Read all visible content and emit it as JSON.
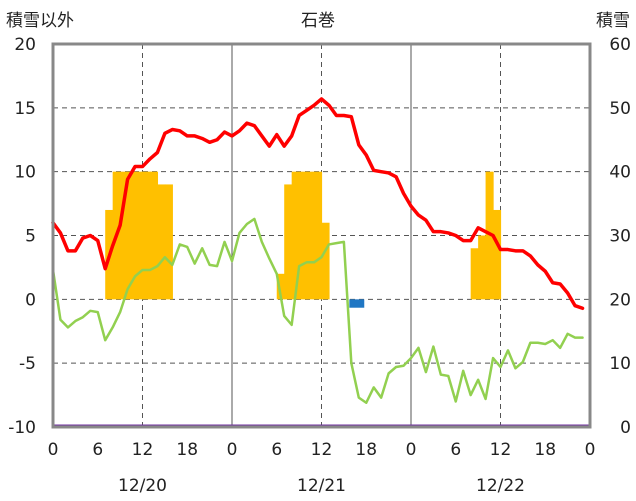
{
  "chart_data": {
    "type": "line",
    "title": "石巻",
    "ylabel_left": "積雪以外",
    "ylabel_right": "積雪",
    "y_left_range": [
      -10,
      20
    ],
    "y_left_ticks": [
      20,
      15,
      10,
      5,
      0,
      -5,
      -10
    ],
    "y_right_range": [
      0,
      60
    ],
    "y_right_ticks": [
      60,
      50,
      40,
      30,
      20,
      10,
      0
    ],
    "x_range_hours": [
      0,
      72
    ],
    "x_tick_labels": [
      "0",
      "6",
      "12",
      "18",
      "0",
      "6",
      "12",
      "18",
      "0",
      "6",
      "12",
      "18",
      "0"
    ],
    "date_labels": [
      "12/20",
      "12/21",
      "12/22"
    ],
    "grid": true,
    "colors": {
      "temperature": "#ff0000",
      "humidity_like": "#92d050",
      "snowfall_bars": "#ffc000",
      "negative_bar": "#1f77c4",
      "baseline": "#7030a0",
      "frame": "#888888"
    },
    "snowfall_bars": {
      "hours": [
        7,
        8,
        9,
        10,
        11,
        12,
        13,
        14,
        15,
        30,
        31,
        32,
        33,
        34,
        35,
        36,
        37,
        56,
        57,
        58,
        59
      ],
      "values": [
        7,
        10,
        10,
        10,
        10,
        10,
        10,
        9,
        9,
        2,
        9,
        10,
        10,
        10,
        10,
        6,
        0,
        4,
        5,
        10,
        7
      ]
    },
    "negative_bar": {
      "hour": 40,
      "value": -0.5
    },
    "series": [
      {
        "values": [
          6,
          5.2,
          3.8,
          3.8,
          4.8,
          5,
          4.6,
          2.4,
          4.2,
          5.8,
          9.4,
          10.4,
          10.4,
          11,
          11.5,
          13,
          13.3,
          13.2,
          12.8,
          12.8,
          12.6,
          12.3,
          12.5,
          13.1,
          12.8,
          13.2,
          13.8,
          13.6,
          12.8,
          12,
          12.9,
          12,
          12.8,
          14.4,
          14.8,
          15.2,
          15.7,
          15.2,
          14.4,
          14.4,
          14.3,
          12.1,
          11.3,
          10.1,
          10,
          9.9,
          9.6,
          8.3,
          7.3,
          6.6,
          6.2,
          5.3,
          5.3,
          5.2,
          5,
          4.6,
          4.6,
          5.6,
          5.3,
          5,
          3.9,
          3.9,
          3.8,
          3.8,
          3.4,
          2.7,
          2.2,
          1.3,
          1.2,
          0.5,
          -0.5,
          -0.7
        ]
      },
      {
        "values": [
          2.3,
          -1.6,
          -2.2,
          -1.7,
          -1.4,
          -0.9,
          -1,
          -3.2,
          -2.2,
          -1,
          0.8,
          1.8,
          2.3,
          2.3,
          2.6,
          3.3,
          2.7,
          4.3,
          4.1,
          2.8,
          4,
          2.7,
          2.6,
          4.5,
          3,
          5.2,
          5.9,
          6.3,
          4.5,
          3.2,
          2,
          -1.3,
          -2,
          2.6,
          2.9,
          2.9,
          3.3,
          4.3,
          4.4,
          4.5,
          -5,
          -7.7,
          -8.1,
          -6.9,
          -7.7,
          -5.8,
          -5.3,
          -5.2,
          -4.6,
          -3.8,
          -5.7,
          -3.7,
          -5.9,
          -6,
          -8,
          -5.6,
          -7.5,
          -6.3,
          -7.8,
          -4.6,
          -5.3,
          -4,
          -5.4,
          -4.9,
          -3.4,
          -3.4,
          -3.5,
          -3.2,
          -3.8,
          -2.7,
          -3,
          -3
        ]
      }
    ]
  }
}
